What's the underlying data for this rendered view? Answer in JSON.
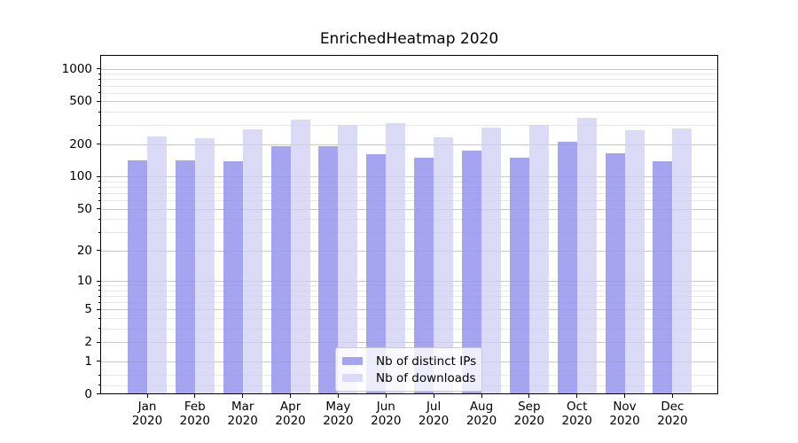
{
  "title": "EnrichedHeatmap 2020",
  "chart_data": {
    "type": "bar",
    "title": "EnrichedHeatmap 2020",
    "categories": [
      "Jan",
      "Feb",
      "Mar",
      "Apr",
      "May",
      "Jun",
      "Jul",
      "Aug",
      "Sep",
      "Oct",
      "Nov",
      "Dec"
    ],
    "x_year_label": "2020",
    "series": [
      {
        "name": "Nb of distinct IPs",
        "color": "#a4a4f0",
        "values": [
          142,
          142,
          140,
          191,
          191,
          163,
          151,
          176,
          150,
          213,
          166,
          138
        ]
      },
      {
        "name": "Nb of downloads",
        "color": "#dbdbf8",
        "values": [
          238,
          226,
          274,
          340,
          303,
          315,
          234,
          287,
          305,
          353,
          272,
          283
        ]
      }
    ],
    "xlabel": "",
    "ylabel": "",
    "y_scale": "log-like: y = log10(value+1)",
    "ylim": [
      0,
      1353
    ],
    "y_ticks": [
      0,
      1,
      2,
      5,
      10,
      20,
      50,
      100,
      200,
      500,
      1000
    ],
    "y_tick_labels": [
      "0",
      "1",
      "2",
      "5",
      "10",
      "20",
      "50",
      "100",
      "200",
      "500",
      "1000"
    ],
    "y_minor_ticks": [
      0.2,
      0.5,
      3,
      4,
      6,
      7,
      8,
      9,
      30,
      40,
      60,
      70,
      80,
      90,
      300,
      400,
      600,
      700,
      800,
      900
    ],
    "grid": "horizontal major + minor, on",
    "legend_position": "inside lower-center"
  },
  "colors": {
    "background": "#ffffff",
    "axis": "#000000",
    "grid_major": "#d4d4d4",
    "grid_minor": "#efefef",
    "legend_border": "#cccccc",
    "text": "#000000"
  }
}
